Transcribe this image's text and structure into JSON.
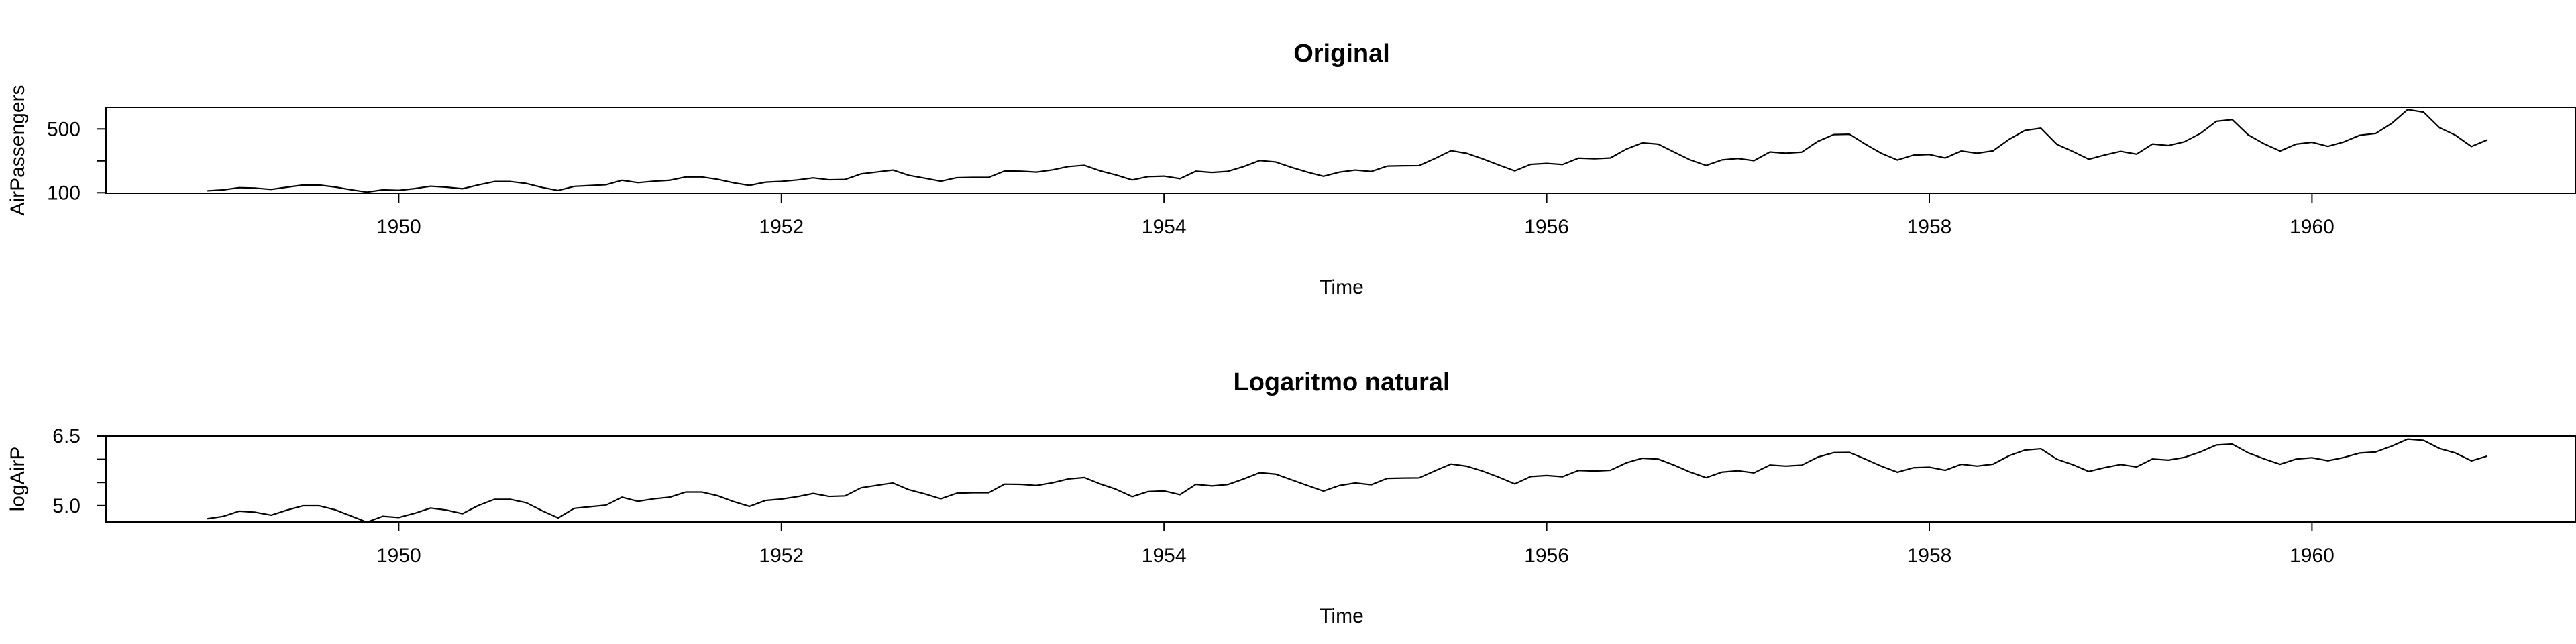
{
  "chart_data": [
    {
      "type": "line",
      "title": "Original",
      "xlabel": "Time",
      "ylabel": "AirPassengers",
      "xlim": [
        1948.47,
        1961.38
      ],
      "ylim": [
        97,
        636
      ],
      "x_ticks": [
        1950,
        1952,
        1954,
        1956,
        1958,
        1960
      ],
      "y_ticks": [
        100,
        300,
        500
      ],
      "y_tick_labels": [
        "100",
        "",
        "500"
      ],
      "grid": false,
      "legend": "none",
      "line_color": "#000000",
      "x_start": 1949,
      "x_step_months": 1,
      "series": [
        {
          "values": [
            112,
            118,
            132,
            129,
            121,
            135,
            148,
            148,
            136,
            119,
            104,
            118,
            115,
            126,
            141,
            135,
            125,
            149,
            170,
            170,
            158,
            133,
            114,
            140,
            145,
            150,
            178,
            163,
            172,
            178,
            199,
            199,
            184,
            162,
            146,
            166,
            171,
            180,
            193,
            181,
            183,
            218,
            230,
            242,
            209,
            191,
            172,
            194,
            196,
            196,
            236,
            235,
            229,
            243,
            264,
            272,
            237,
            211,
            180,
            201,
            204,
            188,
            235,
            227,
            234,
            264,
            302,
            293,
            259,
            229,
            203,
            229,
            242,
            233,
            267,
            269,
            270,
            315,
            364,
            347,
            312,
            274,
            237,
            278,
            284,
            277,
            317,
            313,
            318,
            374,
            413,
            405,
            355,
            306,
            271,
            306,
            315,
            301,
            356,
            348,
            355,
            422,
            465,
            467,
            404,
            347,
            305,
            336,
            340,
            318,
            362,
            348,
            363,
            435,
            491,
            505,
            404,
            359,
            310,
            337,
            360,
            342,
            406,
            396,
            420,
            472,
            548,
            559,
            463,
            407,
            362,
            405,
            417,
            391,
            419,
            461,
            472,
            535,
            622,
            606,
            508,
            461,
            390,
            432
          ]
        }
      ]
    },
    {
      "type": "line",
      "title": "Logaritmo natural",
      "xlabel": "Time",
      "ylabel": "logAirP",
      "xlim": [
        1948.47,
        1961.38
      ],
      "ylim": [
        4.65,
        6.5
      ],
      "x_ticks": [
        1950,
        1952,
        1954,
        1956,
        1958,
        1960
      ],
      "y_ticks": [
        5.0,
        5.5,
        6.0,
        6.5
      ],
      "y_tick_labels": [
        "5.0",
        "",
        "",
        "6.5"
      ],
      "grid": false,
      "legend": "none",
      "line_color": "#000000",
      "x_start": 1949,
      "x_step_months": 1,
      "transform": "log",
      "series": [
        {
          "source": "ln of AirPassengers monthly values"
        }
      ]
    }
  ]
}
